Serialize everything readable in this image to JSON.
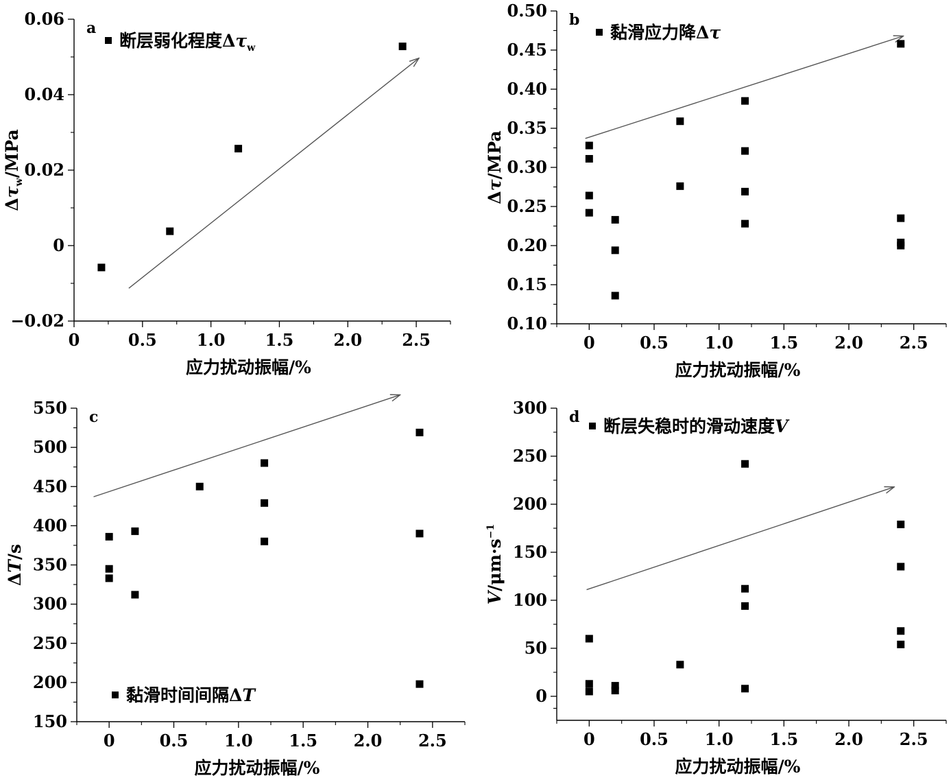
{
  "figure": {
    "background": "#ffffff",
    "marker_color": "#000000",
    "arrow_color": "#555555"
  },
  "chart_data": [
    {
      "id": "a",
      "type": "scatter",
      "panel_letter": "a",
      "xlabel": "应力扰动振幅/%",
      "ylabel": {
        "main": "Δτ",
        "sub": "w",
        "tail": "/MPa"
      },
      "xlim": [
        0,
        2.75
      ],
      "ylim": [
        -0.02,
        0.06
      ],
      "xticks": [
        "0",
        "0.5",
        "1.0",
        "1.5",
        "2.0",
        "2.5"
      ],
      "xtick_values": [
        0,
        0.5,
        1.0,
        1.5,
        2.0,
        2.5
      ],
      "yticks": [
        "−0.02",
        "0",
        "0.02",
        "0.04",
        "0.06"
      ],
      "ytick_values": [
        -0.02,
        0,
        0.02,
        0.04,
        0.06
      ],
      "legend": {
        "label": "断层弱化程度Δτ",
        "sub": "w",
        "position": "top-left"
      },
      "series": [
        {
          "name": "断层弱化程度Δτw",
          "x": [
            0.2,
            0.7,
            1.2,
            2.4
          ],
          "y": [
            -0.0058,
            0.0038,
            0.0257,
            0.0528
          ]
        }
      ],
      "trend_arrow": {
        "from": [
          0.4,
          -0.0113
        ],
        "to": [
          2.52,
          0.0497
        ]
      },
      "grid": false
    },
    {
      "id": "b",
      "type": "scatter",
      "panel_letter": "b",
      "xlabel": "应力扰动振幅/%",
      "ylabel": {
        "main": "Δτ",
        "sub": "",
        "tail": "/MPa"
      },
      "xlim": [
        -0.25,
        2.75
      ],
      "ylim": [
        0.1,
        0.5
      ],
      "xticks": [
        "0",
        "0.5",
        "1.0",
        "1.5",
        "2.0",
        "2.5"
      ],
      "xtick_values": [
        0,
        0.5,
        1.0,
        1.5,
        2.0,
        2.5
      ],
      "yticks": [
        "0.10",
        "0.15",
        "0.20",
        "0.25",
        "0.30",
        "0.35",
        "0.40",
        "0.45",
        "0.50"
      ],
      "ytick_values": [
        0.1,
        0.15,
        0.2,
        0.25,
        0.3,
        0.35,
        0.4,
        0.45,
        0.5
      ],
      "legend": {
        "label": "黏滑应力降Δτ",
        "sub": "",
        "position": "top-left"
      },
      "series": [
        {
          "name": "黏滑应力降Δτ",
          "x": [
            0,
            0,
            0,
            0,
            0.2,
            0.2,
            0.2,
            0.7,
            0.7,
            1.2,
            1.2,
            1.2,
            1.2,
            2.4,
            2.4,
            2.4,
            2.4
          ],
          "y": [
            0.328,
            0.311,
            0.264,
            0.242,
            0.233,
            0.194,
            0.136,
            0.359,
            0.276,
            0.385,
            0.321,
            0.269,
            0.228,
            0.458,
            0.235,
            0.204,
            0.2
          ]
        }
      ],
      "trend_arrow": {
        "from": [
          -0.03,
          0.337
        ],
        "to": [
          2.42,
          0.468
        ]
      },
      "grid": false
    },
    {
      "id": "c",
      "type": "scatter",
      "panel_letter": "c",
      "xlabel": "应力扰动振幅/%",
      "ylabel": {
        "main": "ΔT",
        "sub": "",
        "tail": "/s"
      },
      "xlim": [
        -0.25,
        2.75
      ],
      "ylim": [
        150,
        550
      ],
      "xticks": [
        "0",
        "0.5",
        "1.0",
        "1.5",
        "2.0",
        "2.5"
      ],
      "xtick_values": [
        0,
        0.5,
        1.0,
        1.5,
        2.0,
        2.5
      ],
      "yticks": [
        "150",
        "200",
        "250",
        "300",
        "350",
        "400",
        "450",
        "500",
        "550"
      ],
      "ytick_values": [
        150,
        200,
        250,
        300,
        350,
        400,
        450,
        500,
        550
      ],
      "legend": {
        "label": "黏滑时间间隔ΔT",
        "sub": "",
        "position": "bottom-left"
      },
      "series": [
        {
          "name": "黏滑时间间隔ΔT",
          "x": [
            0,
            0,
            0,
            0.2,
            0.2,
            0.7,
            1.2,
            1.2,
            1.2,
            2.4,
            2.4,
            2.4
          ],
          "y": [
            386,
            345,
            333,
            393,
            312,
            450,
            480,
            429,
            380,
            519,
            390,
            198
          ]
        }
      ],
      "trend_arrow": {
        "from": [
          -0.12,
          437
        ],
        "to": [
          2.25,
          567
        ]
      },
      "grid": false
    },
    {
      "id": "d",
      "type": "scatter",
      "panel_letter": "d",
      "xlabel": "应力扰动振幅/%",
      "ylabel": {
        "main": "V",
        "sub": "",
        "tail": "/μm·s",
        "sup": "−1"
      },
      "xlim": [
        -0.25,
        2.75
      ],
      "ylim": [
        -25,
        300
      ],
      "xticks": [
        "0",
        "0.5",
        "1.0",
        "1.5",
        "2.0",
        "2.5"
      ],
      "xtick_values": [
        0,
        0.5,
        1.0,
        1.5,
        2.0,
        2.5
      ],
      "yticks": [
        "0",
        "50",
        "100",
        "150",
        "200",
        "250",
        "300"
      ],
      "ytick_values": [
        0,
        50,
        100,
        150,
        200,
        250,
        300
      ],
      "legend": {
        "label": "断层失稳时的滑动速度V",
        "sub": "",
        "position": "top-left"
      },
      "series": [
        {
          "name": "断层失稳时的滑动速度V",
          "x": [
            0,
            0,
            0,
            0.2,
            0.2,
            0.7,
            1.2,
            1.2,
            1.2,
            1.2,
            2.4,
            2.4,
            2.4,
            2.4
          ],
          "y": [
            60,
            13,
            5,
            11,
            6,
            33,
            242,
            112,
            94,
            8,
            179,
            135,
            68,
            54
          ]
        }
      ],
      "trend_arrow": {
        "from": [
          -0.02,
          111
        ],
        "to": [
          2.35,
          218
        ]
      },
      "grid": false
    }
  ]
}
